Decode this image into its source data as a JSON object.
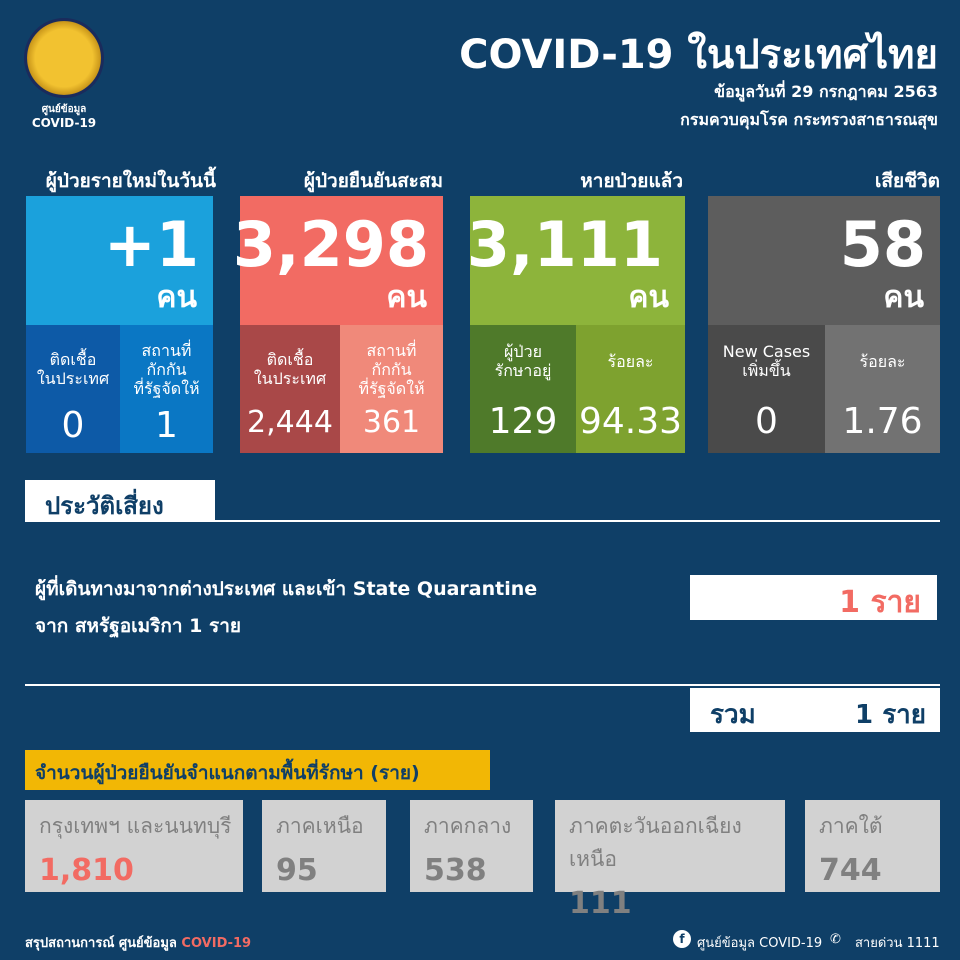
{
  "logo": {
    "line1": "ศูนย์ข้อมูล",
    "line2": "COVID-19"
  },
  "header": {
    "title": "COVID-19 ในประเทศไทย",
    "date": "ข้อมูลวันที่ 29 กรกฎาคม 2563",
    "source": "กรมควบคุมโรค กระทรวงสาธารณสุข"
  },
  "cards": [
    {
      "title": "ผู้ป่วยรายใหม่ในวันนี้",
      "value": "+1",
      "unit": "คน",
      "left": {
        "label1": "ติดเชื้อ",
        "label2": "ในประเทศ",
        "label3": "",
        "value": "0"
      },
      "right": {
        "label1": "สถานที่",
        "label2": "กักกัน",
        "label3": "ที่รัฐจัดให้",
        "value": "1"
      },
      "color": "#1ba1dc"
    },
    {
      "title": "ผู้ป่วยยืนยันสะสม",
      "value": "3,298",
      "unit": "คน",
      "left": {
        "label1": "ติดเชื้อ",
        "label2": "ในประเทศ",
        "label3": "",
        "value": "2,444"
      },
      "right": {
        "label1": "สถานที่",
        "label2": "กักกัน",
        "label3": "ที่รัฐจัดให้",
        "value": "361"
      },
      "color": "#f26b63"
    },
    {
      "title": "หายป่วยแล้ว",
      "value": "3,111",
      "unit": "คน",
      "left": {
        "label1": "ผู้ป่วย",
        "label2": "รักษาอยู่",
        "label3": "",
        "value": "129"
      },
      "right": {
        "label1": "ร้อยละ",
        "label2": "",
        "label3": "",
        "value": "94.33"
      },
      "color": "#8db43b"
    },
    {
      "title": "เสียชีวิต",
      "value": "58",
      "unit": "คน",
      "left": {
        "label1": "New Cases",
        "label2": "เพิ่มขึ้น",
        "label3": "",
        "value": "0"
      },
      "right": {
        "label1": "ร้อยละ",
        "label2": "",
        "label3": "",
        "value": "1.76"
      },
      "color": "#5d5d5d"
    }
  ],
  "risk": {
    "heading": "ประวัติเสี่ยง",
    "line1": "ผู้ที่เดินทางมาจากต่างประเทศ และเข้า State Quarantine",
    "line2": "จาก สหรัฐอเมริกา 1 ราย",
    "count": "1 ราย",
    "total_label": "รวม",
    "total": "1 ราย"
  },
  "regions": {
    "banner": "จำนวนผู้ป่วยยืนยันจำแนกตามพื้นที่รักษา (ราย)",
    "items": [
      {
        "name": "กรุงเทพฯ และนนทบุรี",
        "value": "1,810"
      },
      {
        "name": "ภาคเหนือ",
        "value": "95"
      },
      {
        "name": "ภาคกลาง",
        "value": "538"
      },
      {
        "name": "ภาคตะวันออกเฉียงเหนือ",
        "value": "111"
      },
      {
        "name": "ภาคใต้",
        "value": "744"
      }
    ]
  },
  "footer": {
    "summary": "สรุปสถานการณ์ ศูนย์ข้อมูล",
    "summary_accent": "COVID-19",
    "facebook": "ศูนย์ข้อมูล COVID-19",
    "hotline": "สายด่วน 1111"
  }
}
